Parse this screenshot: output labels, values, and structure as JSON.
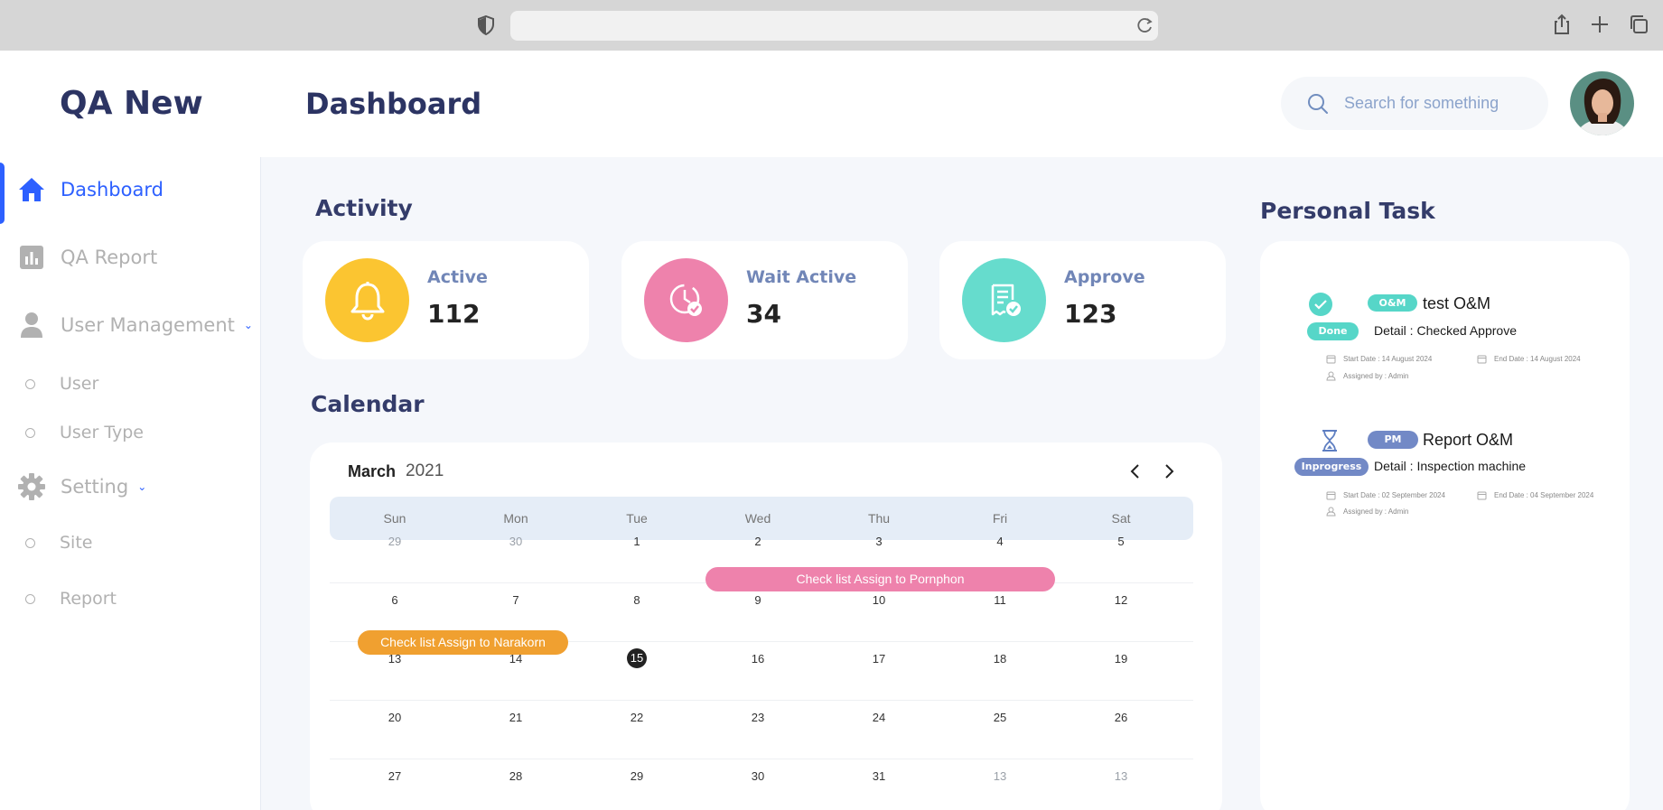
{
  "app": {
    "brand": "QA New"
  },
  "header": {
    "title": "Dashboard",
    "search_placeholder": "Search for something"
  },
  "sidebar": {
    "items": [
      {
        "label": "Dashboard",
        "icon": "home-icon",
        "active": true
      },
      {
        "label": "QA Report",
        "icon": "bar-chart-icon"
      },
      {
        "label": "User Management",
        "icon": "user-icon"
      },
      {
        "label": "Setting",
        "icon": "gear-icon"
      }
    ],
    "user_management_sub": [
      {
        "label": "User"
      },
      {
        "label": "User Type"
      }
    ],
    "setting_sub": [
      {
        "label": "Site"
      },
      {
        "label": "Report"
      }
    ]
  },
  "activity": {
    "title": "Activity",
    "cards": [
      {
        "label": "Active",
        "value": "112",
        "color": "#fbc531",
        "icon": "bell-icon"
      },
      {
        "label": "Wait Active",
        "value": "34",
        "color": "#ee82ac",
        "icon": "clock-check-icon"
      },
      {
        "label": "Approve",
        "value": "123",
        "color": "#66dccd",
        "icon": "document-check-icon"
      }
    ]
  },
  "calendar": {
    "title": "Calendar",
    "month": "March",
    "year": "2021",
    "day_names": [
      "Sun",
      "Mon",
      "Tue",
      "Wed",
      "Thu",
      "Fri",
      "Sat"
    ],
    "weeks": [
      [
        "29",
        "30",
        "1",
        "2",
        "3",
        "4",
        "5"
      ],
      [
        "6",
        "7",
        "8",
        "9",
        "10",
        "11",
        "12"
      ],
      [
        "13",
        "14",
        "15",
        "16",
        "17",
        "18",
        "19"
      ],
      [
        "20",
        "21",
        "22",
        "23",
        "24",
        "25",
        "26"
      ],
      [
        "27",
        "28",
        "29",
        "30",
        "31",
        "13",
        "13"
      ]
    ],
    "today": "15",
    "events": [
      {
        "label": "Check list Assign to Pornphon",
        "color": "#ee82ac"
      },
      {
        "label": "Check list Assign to Narakorn",
        "color": "#f0a030"
      }
    ]
  },
  "personal_task": {
    "title": "Personal Task",
    "tasks": [
      {
        "tag": "O&M",
        "tag_color": "#56d6c8",
        "name": "test O&M",
        "status": "Done",
        "status_color": "#56d6c8",
        "detail": "Detail : Checked Approve",
        "start": "Start Date : 14 August 2024",
        "end": "End Date : 14 August 2024",
        "assigned": "Assigned by : Admin"
      },
      {
        "tag": "PM",
        "tag_color": "#7289c6",
        "name": "Report O&M",
        "status": "Inprogress",
        "status_color": "#7289c6",
        "detail": "Detail : Inspection machine",
        "start": "Start Date : 02 September 2024",
        "end": "End Date : 04 September 2024",
        "assigned": "Assigned by : Admin"
      }
    ]
  }
}
